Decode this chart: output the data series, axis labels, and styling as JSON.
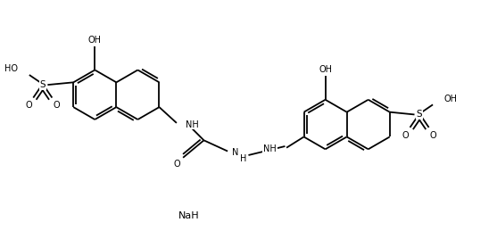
{
  "bg_color": "#ffffff",
  "bond_color": "#000000",
  "line_width": 1.3,
  "font_size": 7.0,
  "fig_width": 5.57,
  "fig_height": 2.68,
  "dpi": 100,
  "xlim": [
    0,
    10
  ],
  "ylim": [
    0,
    4.8
  ]
}
